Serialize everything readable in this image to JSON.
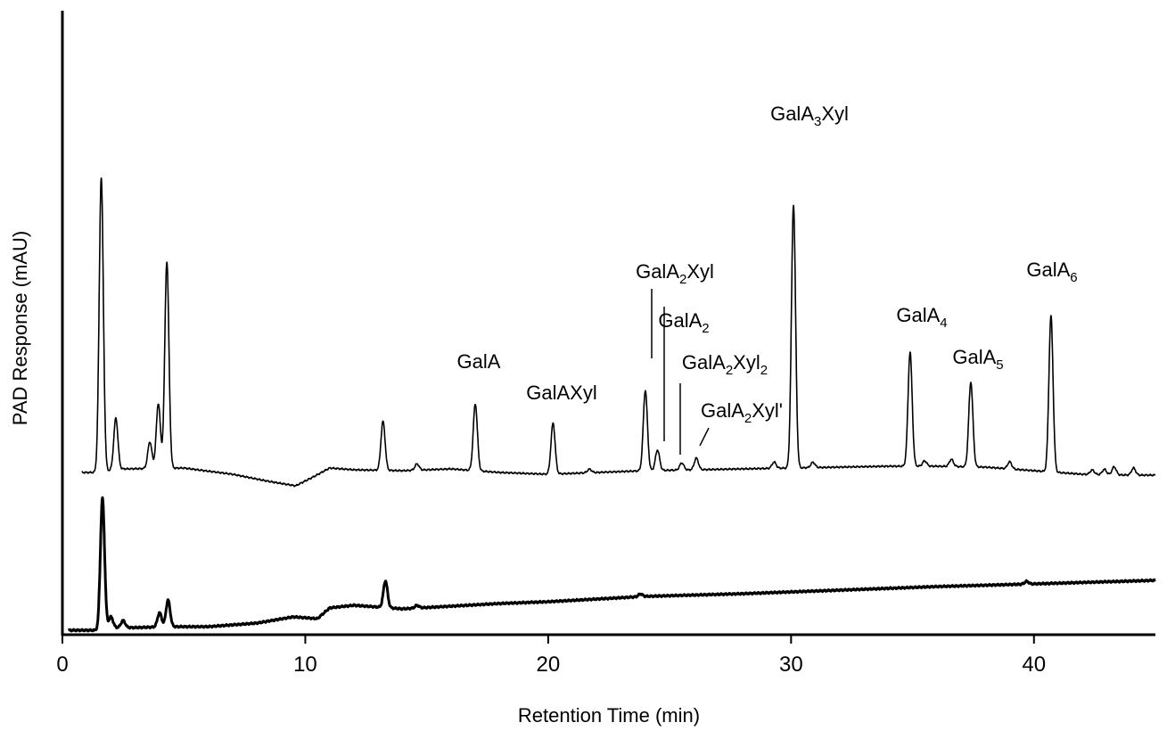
{
  "chart_data": {
    "type": "line",
    "xlabel": "Retention Time (min)",
    "ylabel": "PAD Response (mAU)",
    "xlim": [
      0,
      45
    ],
    "x_ticks": [
      "0",
      "10",
      "20",
      "30",
      "40"
    ],
    "grid": false,
    "series": [
      {
        "peaks": [
          [
            1.6,
            330
          ],
          [
            2.2,
            58
          ],
          [
            3.6,
            30
          ],
          [
            3.95,
            73
          ],
          [
            4.3,
            232
          ],
          [
            13.2,
            55
          ],
          [
            14.6,
            7
          ],
          [
            17.0,
            75
          ],
          [
            20.2,
            57
          ],
          [
            21.7,
            4
          ],
          [
            24.0,
            90
          ],
          [
            24.5,
            23
          ],
          [
            25.5,
            8
          ],
          [
            26.1,
            13
          ],
          [
            29.3,
            7
          ],
          [
            30.1,
            295
          ],
          [
            30.9,
            6
          ],
          [
            34.9,
            128
          ],
          [
            35.5,
            6
          ],
          [
            36.6,
            8
          ],
          [
            37.4,
            95
          ],
          [
            39.0,
            8
          ],
          [
            40.7,
            175
          ],
          [
            42.4,
            5
          ],
          [
            42.9,
            6
          ],
          [
            43.3,
            9
          ],
          [
            44.1,
            8
          ]
        ]
      },
      {
        "peaks": [
          [
            1.65,
            145
          ],
          [
            2.0,
            12
          ],
          [
            2.5,
            8
          ],
          [
            4.0,
            16
          ],
          [
            4.35,
            30
          ],
          [
            13.3,
            30
          ],
          [
            14.6,
            3
          ],
          [
            23.8,
            3
          ],
          [
            39.7,
            3
          ]
        ]
      }
    ],
    "annotations": [
      {
        "base": "GalA",
        "sub": "",
        "tail": "",
        "x": 17.0
      },
      {
        "base": "GalAXyl",
        "sub": "",
        "tail": "",
        "x": 20.2
      },
      {
        "base": "GalA",
        "sub": "2",
        "tail": "Xyl",
        "x": 24.2
      },
      {
        "base": "GalA",
        "sub": "2",
        "tail": "",
        "x": 24.8
      },
      {
        "base": "GalA",
        "sub": "2",
        "tail": "Xyl",
        "sub2": "2",
        "x": 25.5
      },
      {
        "base": "GalA",
        "sub": "2",
        "tail": "Xyl'",
        "x": 26.1
      },
      {
        "base": "GalA",
        "sub": "3",
        "tail": "Xyl",
        "x": 30.1
      },
      {
        "base": "GalA",
        "sub": "4",
        "tail": "",
        "x": 34.9
      },
      {
        "base": "GalA",
        "sub": "5",
        "tail": "",
        "x": 37.4
      },
      {
        "base": "GalA",
        "sub": "6",
        "tail": "",
        "x": 40.7
      }
    ]
  }
}
